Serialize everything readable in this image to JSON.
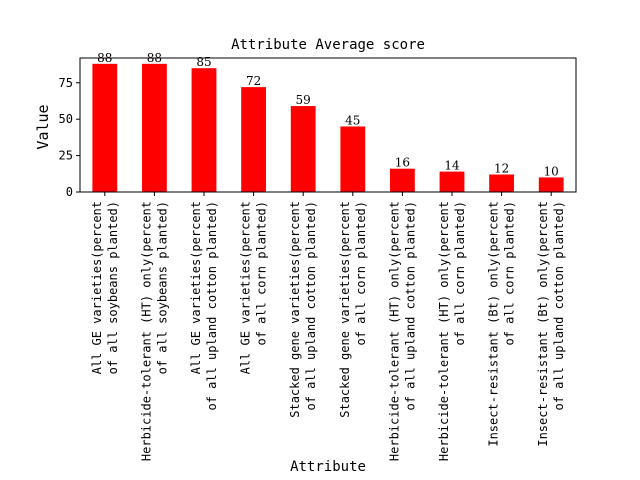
{
  "chart_data": {
    "type": "bar",
    "title": "Attribute Average score",
    "xlabel": "Attribute",
    "ylabel": "Value",
    "ylim": [
      0,
      92
    ],
    "yticks": [
      0,
      25,
      50,
      75
    ],
    "grid": false,
    "bar_color": "#ff0000",
    "categories": [
      [
        "All GE varieties(percent",
        "of all soybeans planted)"
      ],
      [
        "Herbicide-tolerant (HT) only(percent",
        "of all soybeans planted)"
      ],
      [
        "All GE varieties(percent",
        "of all upland cotton planted)"
      ],
      [
        "All GE varieties(percent",
        "of all corn planted)"
      ],
      [
        "Stacked gene varieties(percent",
        "of all upland cotton planted)"
      ],
      [
        "Stacked gene varieties(percent",
        "of all corn planted)"
      ],
      [
        "Herbicide-tolerant (HT) only(percent",
        "of all upland cotton planted)"
      ],
      [
        "Herbicide-tolerant (HT) only(percent",
        "of all corn planted)"
      ],
      [
        "Insect-resistant (Bt) only(percent",
        "of all corn planted)"
      ],
      [
        "Insect-resistant (Bt) only(percent",
        "of all upland cotton planted)"
      ]
    ],
    "values": [
      88,
      88,
      85,
      72,
      59,
      45,
      16,
      14,
      12,
      10
    ]
  }
}
